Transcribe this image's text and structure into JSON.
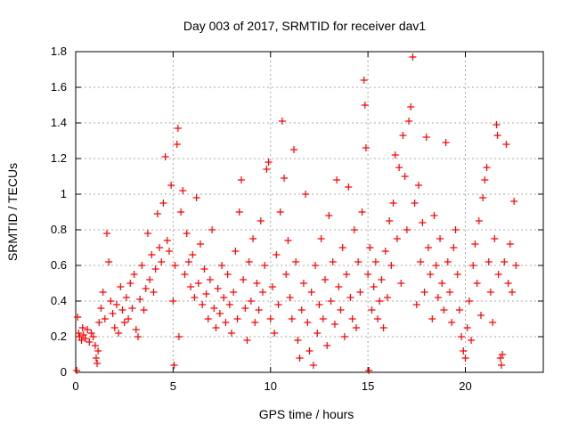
{
  "chart_data": {
    "type": "scatter",
    "title": "Day 003 of 2017, SRMTID for receiver dav1",
    "xlabel": "GPS time / hours",
    "ylabel": "SRMTID / TECUs",
    "xlim": [
      0,
      24
    ],
    "ylim": [
      0,
      1.8
    ],
    "x_ticks": [
      0,
      5,
      10,
      15,
      20
    ],
    "x_tick_labels": [
      "0",
      "5",
      "10",
      "15",
      "20"
    ],
    "y_ticks": [
      0,
      0.2,
      0.4,
      0.6,
      0.8,
      1,
      1.2,
      1.4,
      1.6,
      1.8
    ],
    "y_tick_labels": [
      "0",
      "0.2",
      "0.4",
      "0.6",
      "0.8",
      "1",
      "1.2",
      "1.4",
      "1.6",
      "1.8"
    ],
    "grid": true,
    "marker": "+",
    "series_color": "#ff0000",
    "series": [
      {
        "name": "SRMTID",
        "points": [
          [
            0.05,
            0.01
          ],
          [
            0.1,
            0.31
          ],
          [
            0.15,
            0.22
          ],
          [
            0.2,
            0.2
          ],
          [
            0.3,
            0.18
          ],
          [
            0.35,
            0.25
          ],
          [
            0.4,
            0.21
          ],
          [
            0.5,
            0.19
          ],
          [
            0.6,
            0.24
          ],
          [
            0.7,
            0.17
          ],
          [
            0.8,
            0.22
          ],
          [
            0.9,
            0.2
          ],
          [
            1.0,
            0.15
          ],
          [
            1.05,
            0.08
          ],
          [
            1.1,
            0.05
          ],
          [
            1.15,
            0.12
          ],
          [
            1.2,
            0.28
          ],
          [
            1.3,
            0.36
          ],
          [
            1.4,
            0.45
          ],
          [
            1.5,
            0.3
          ],
          [
            1.6,
            0.78
          ],
          [
            1.7,
            0.62
          ],
          [
            1.8,
            0.4
          ],
          [
            1.9,
            0.33
          ],
          [
            2.0,
            0.25
          ],
          [
            2.1,
            0.38
          ],
          [
            2.2,
            0.22
          ],
          [
            2.3,
            0.48
          ],
          [
            2.4,
            0.35
          ],
          [
            2.5,
            0.28
          ],
          [
            2.6,
            0.42
          ],
          [
            2.7,
            0.3
          ],
          [
            2.8,
            0.5
          ],
          [
            2.9,
            0.36
          ],
          [
            3.0,
            0.55
          ],
          [
            3.1,
            0.24
          ],
          [
            3.2,
            0.2
          ],
          [
            3.3,
            0.41
          ],
          [
            3.4,
            0.6
          ],
          [
            3.5,
            0.35
          ],
          [
            3.6,
            0.47
          ],
          [
            3.7,
            0.78
          ],
          [
            3.8,
            0.52
          ],
          [
            3.9,
            0.66
          ],
          [
            4.0,
            0.45
          ],
          [
            4.1,
            0.58
          ],
          [
            4.2,
            0.89
          ],
          [
            4.3,
            0.7
          ],
          [
            4.4,
            0.62
          ],
          [
            4.5,
            0.95
          ],
          [
            4.6,
            1.21
          ],
          [
            4.7,
            0.74
          ],
          [
            4.8,
            0.68
          ],
          [
            4.9,
            1.05
          ],
          [
            5.0,
            0.4
          ],
          [
            5.05,
            0.04
          ],
          [
            5.1,
            0.6
          ],
          [
            5.2,
            1.28
          ],
          [
            5.25,
            1.37
          ],
          [
            5.3,
            0.2
          ],
          [
            5.4,
            0.9
          ],
          [
            5.5,
            1.02
          ],
          [
            5.6,
            0.55
          ],
          [
            5.7,
            0.78
          ],
          [
            5.8,
            0.62
          ],
          [
            5.9,
            0.48
          ],
          [
            6.0,
            0.66
          ],
          [
            6.1,
            0.42
          ],
          [
            6.2,
            0.98
          ],
          [
            6.3,
            0.5
          ],
          [
            6.4,
            0.72
          ],
          [
            6.5,
            0.38
          ],
          [
            6.6,
            0.58
          ],
          [
            6.7,
            0.44
          ],
          [
            6.8,
            0.3
          ],
          [
            6.9,
            0.52
          ],
          [
            7.0,
            0.8
          ],
          [
            7.1,
            0.36
          ],
          [
            7.2,
            0.25
          ],
          [
            7.3,
            0.47
          ],
          [
            7.4,
            0.33
          ],
          [
            7.5,
            0.6
          ],
          [
            7.6,
            0.42
          ],
          [
            7.7,
            0.28
          ],
          [
            7.8,
            0.55
          ],
          [
            7.9,
            0.38
          ],
          [
            8.0,
            0.22
          ],
          [
            8.1,
            0.45
          ],
          [
            8.2,
            0.68
          ],
          [
            8.3,
            0.3
          ],
          [
            8.4,
            0.9
          ],
          [
            8.5,
            1.08
          ],
          [
            8.6,
            0.52
          ],
          [
            8.7,
            0.36
          ],
          [
            8.8,
            0.18
          ],
          [
            8.9,
            0.62
          ],
          [
            9.0,
            0.4
          ],
          [
            9.1,
            0.75
          ],
          [
            9.2,
            0.28
          ],
          [
            9.3,
            0.5
          ],
          [
            9.4,
            0.35
          ],
          [
            9.5,
            0.85
          ],
          [
            9.6,
            0.45
          ],
          [
            9.7,
            0.6
          ],
          [
            9.8,
            1.14
          ],
          [
            9.9,
            1.18
          ],
          [
            10.0,
            0.3
          ],
          [
            10.1,
            0.48
          ],
          [
            10.2,
            0.22
          ],
          [
            10.3,
            0.66
          ],
          [
            10.4,
            0.38
          ],
          [
            10.5,
            0.9
          ],
          [
            10.6,
            1.41
          ],
          [
            10.7,
            1.09
          ],
          [
            10.8,
            0.55
          ],
          [
            10.9,
            0.74
          ],
          [
            11.0,
            0.42
          ],
          [
            11.1,
            0.3
          ],
          [
            11.2,
            1.25
          ],
          [
            11.3,
            0.62
          ],
          [
            11.4,
            0.18
          ],
          [
            11.5,
            0.08
          ],
          [
            11.6,
            0.35
          ],
          [
            11.7,
            0.5
          ],
          [
            11.8,
            1.0
          ],
          [
            11.9,
            0.28
          ],
          [
            12.0,
            0.12
          ],
          [
            12.1,
            0.45
          ],
          [
            12.2,
            0.04
          ],
          [
            12.3,
            0.6
          ],
          [
            12.4,
            0.22
          ],
          [
            12.5,
            0.38
          ],
          [
            12.6,
            0.75
          ],
          [
            12.7,
            0.3
          ],
          [
            12.8,
            0.52
          ],
          [
            12.9,
            0.15
          ],
          [
            13.0,
            0.88
          ],
          [
            13.1,
            0.4
          ],
          [
            13.2,
            0.62
          ],
          [
            13.3,
            0.27
          ],
          [
            13.4,
            1.08
          ],
          [
            13.5,
            0.48
          ],
          [
            13.6,
            0.35
          ],
          [
            13.7,
            0.7
          ],
          [
            13.8,
            0.2
          ],
          [
            13.9,
            0.55
          ],
          [
            14.0,
            1.04
          ],
          [
            14.1,
            0.42
          ],
          [
            14.2,
            0.3
          ],
          [
            14.3,
            0.8
          ],
          [
            14.4,
            0.25
          ],
          [
            14.5,
            0.62
          ],
          [
            14.6,
            0.45
          ],
          [
            14.7,
            0.9
          ],
          [
            14.8,
            1.64
          ],
          [
            14.85,
            1.5
          ],
          [
            14.9,
            1.26
          ],
          [
            15.0,
            0.55
          ],
          [
            15.05,
            0.01
          ],
          [
            15.1,
            0.7
          ],
          [
            15.2,
            0.35
          ],
          [
            15.3,
            0.48
          ],
          [
            15.4,
            0.62
          ],
          [
            15.5,
            0.3
          ],
          [
            15.6,
            0.4
          ],
          [
            15.7,
            0.52
          ],
          [
            15.8,
            0.25
          ],
          [
            15.9,
            0.68
          ],
          [
            16.0,
            0.42
          ],
          [
            16.1,
            0.85
          ],
          [
            16.2,
            0.6
          ],
          [
            16.3,
            0.95
          ],
          [
            16.4,
            1.22
          ],
          [
            16.5,
            0.75
          ],
          [
            16.6,
            1.15
          ],
          [
            16.7,
            0.5
          ],
          [
            16.8,
            1.33
          ],
          [
            16.9,
            1.1
          ],
          [
            17.0,
            0.8
          ],
          [
            17.1,
            1.41
          ],
          [
            17.2,
            1.49
          ],
          [
            17.3,
            1.77
          ],
          [
            17.4,
            0.95
          ],
          [
            17.5,
            0.38
          ],
          [
            17.6,
            1.05
          ],
          [
            17.7,
            0.62
          ],
          [
            17.8,
            0.84
          ],
          [
            17.9,
            0.45
          ],
          [
            18.0,
            1.32
          ],
          [
            18.1,
            0.7
          ],
          [
            18.2,
            0.55
          ],
          [
            18.3,
            0.3
          ],
          [
            18.4,
            0.88
          ],
          [
            18.5,
            0.6
          ],
          [
            18.6,
            0.42
          ],
          [
            18.7,
            0.75
          ],
          [
            18.8,
            0.5
          ],
          [
            18.9,
            0.35
          ],
          [
            19.0,
            1.29
          ],
          [
            19.1,
            0.62
          ],
          [
            19.2,
            0.45
          ],
          [
            19.3,
            0.28
          ],
          [
            19.4,
            0.7
          ],
          [
            19.5,
            0.8
          ],
          [
            19.6,
            0.55
          ],
          [
            19.7,
            0.35
          ],
          [
            19.8,
            0.2
          ],
          [
            19.9,
            0.12
          ],
          [
            20.0,
            0.08
          ],
          [
            20.1,
            0.25
          ],
          [
            20.2,
            0.4
          ],
          [
            20.3,
            0.18
          ],
          [
            20.4,
            0.6
          ],
          [
            20.5,
            0.72
          ],
          [
            20.6,
            0.5
          ],
          [
            20.7,
            0.85
          ],
          [
            20.8,
            0.32
          ],
          [
            20.9,
            0.98
          ],
          [
            21.0,
            1.08
          ],
          [
            21.1,
            1.15
          ],
          [
            21.2,
            0.62
          ],
          [
            21.3,
            0.45
          ],
          [
            21.4,
            0.28
          ],
          [
            21.5,
            0.75
          ],
          [
            21.6,
            1.39
          ],
          [
            21.65,
            1.33
          ],
          [
            21.7,
            0.55
          ],
          [
            21.8,
            0.08
          ],
          [
            21.85,
            0.04
          ],
          [
            21.9,
            0.1
          ],
          [
            22.0,
            0.62
          ],
          [
            22.1,
            1.28
          ],
          [
            22.2,
            0.5
          ],
          [
            22.3,
            0.72
          ],
          [
            22.4,
            0.45
          ],
          [
            22.5,
            0.96
          ],
          [
            22.6,
            0.6
          ]
        ]
      }
    ]
  }
}
